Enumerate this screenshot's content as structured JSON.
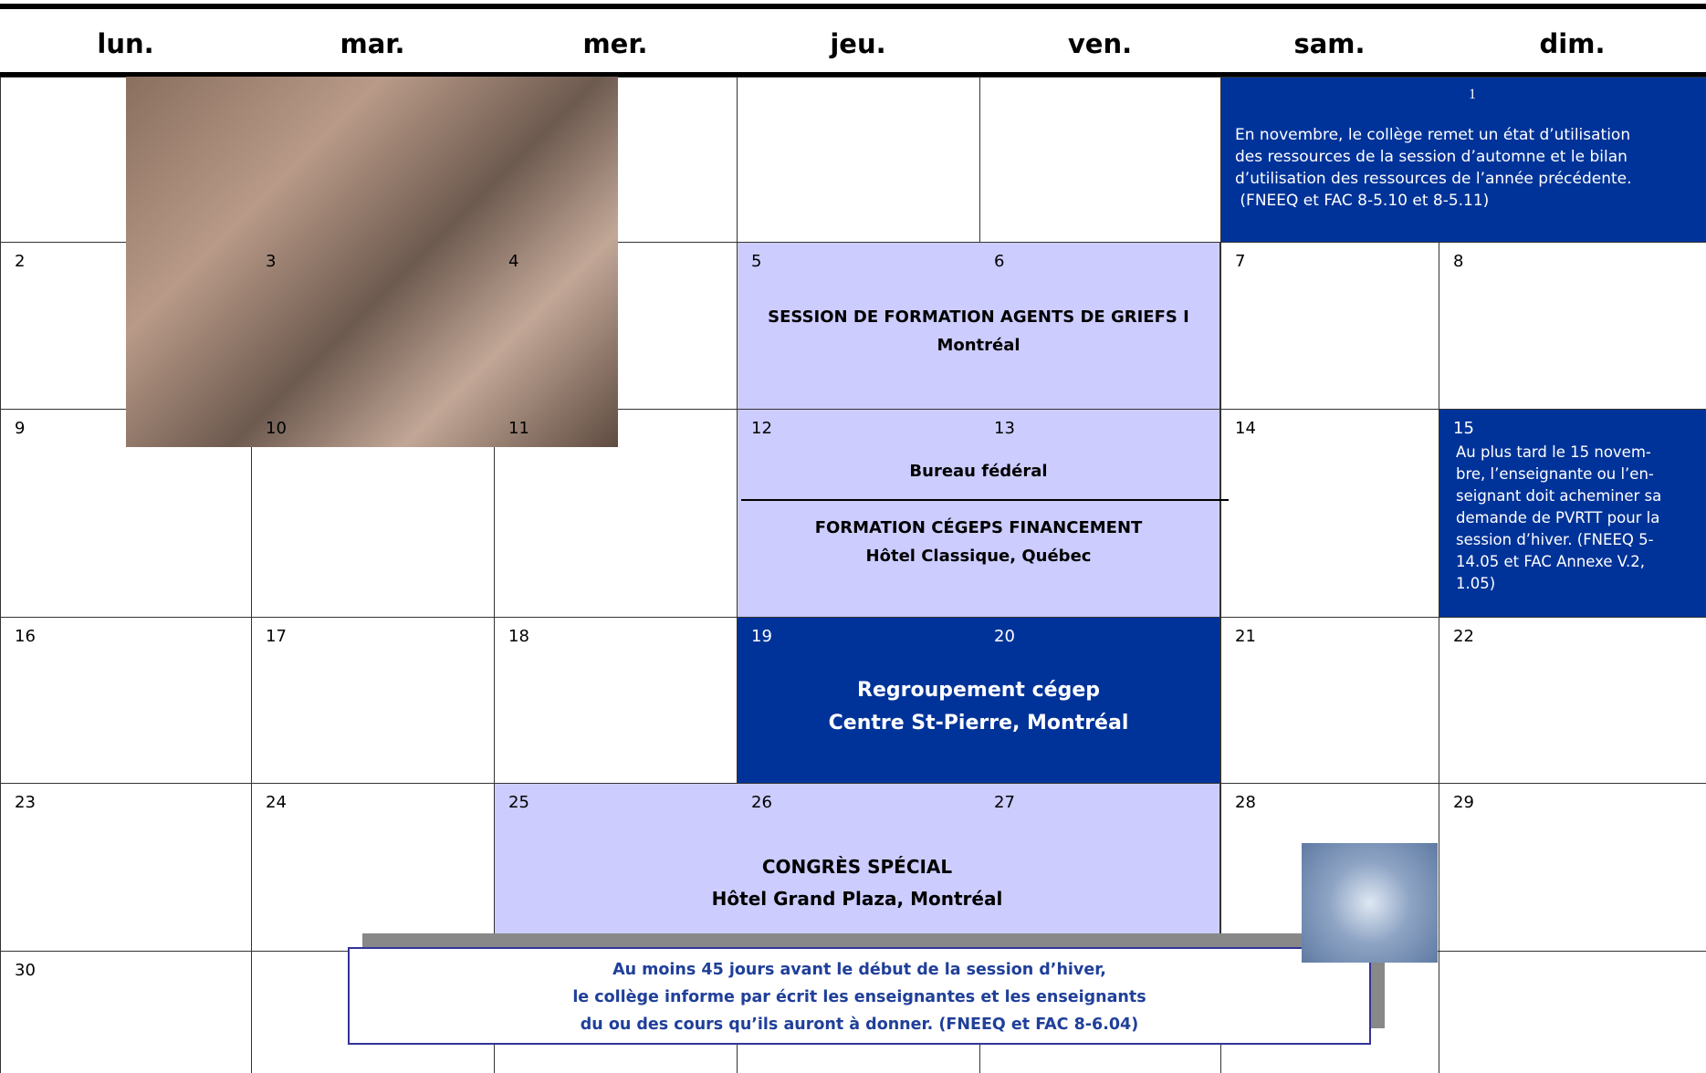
{
  "weekdays": [
    "lun.",
    "mar.",
    "mer.",
    "jeu.",
    "ven.",
    "sam.",
    "dim."
  ],
  "days": [
    "1",
    "2",
    "3",
    "4",
    "5",
    "6",
    "7",
    "8",
    "9",
    "10",
    "11",
    "12",
    "13",
    "14",
    "15",
    "16",
    "17",
    "18",
    "19",
    "20",
    "21",
    "22",
    "23",
    "24",
    "25",
    "26",
    "27",
    "28",
    "29",
    "30"
  ],
  "notes": {
    "nov1": [
      "En novembre, le collège remet un état d’utilisation",
      "des ressources de la session d’automne et le bilan",
      "d’utilisation des ressources de l’année précédente.",
      " (FNEEQ et FAC 8-5.10 et 8-5.11)"
    ],
    "nov15": [
      "Au plus tard le 15 novem-",
      "bre, l’enseignante ou l’en-",
      "seignant doit acheminer sa",
      "demande de PVRTT pour la",
      "session d’hiver. (FNEEQ 5-",
      "14.05 et FAC Annexe V.2,",
      "1.05)"
    ],
    "callout": [
      "Au moins 45 jours avant le début de la session d’hiver,",
      "le collège informe par écrit les enseignantes et les enseignants",
      "du ou des cours qu’ils auront à donner. (FNEEQ et FAC 8-6.04)"
    ]
  },
  "events": {
    "griefs": [
      "SESSION DE FORMATION AGENTS DE GRIEFS I",
      "Montréal"
    ],
    "bureau": [
      "Bureau fédéral"
    ],
    "cegeps": [
      "FORMATION CÉGEPS FINANCEMENT",
      "Hôtel Classique, Québec"
    ],
    "regroupement": [
      "Regroupement cégep",
      "Centre St-Pierre, Montréal"
    ],
    "congres": [
      "CONGRÈS SPÉCIAL",
      "Hôtel Grand Plaza, Montréal"
    ]
  }
}
